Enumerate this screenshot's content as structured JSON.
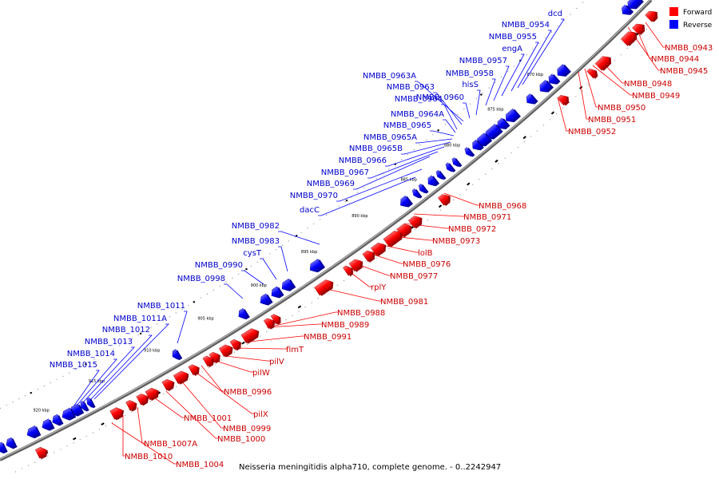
{
  "caption": "Neisseria meningitidis alpha710, complete genome. - 0..2242947",
  "legend": {
    "placement": "top-right",
    "forward": {
      "label": "Forward",
      "color": "#ff0000"
    },
    "reverse": {
      "label": "Reverse",
      "color": "#0000ff"
    }
  },
  "axis": {
    "tick_labels": [
      "870 kbp",
      "875 kbp",
      "880 kbp",
      "885 kbp",
      "890 kbp",
      "895 kbp",
      "900 kbp",
      "905 kbp",
      "910 kbp",
      "915 kbp",
      "920 kbp"
    ]
  },
  "colors": {
    "backbone": "#808080",
    "label_forward": "#cc0000",
    "label_reverse": "#0000cc"
  },
  "forward_genes": [
    "NMBB_0943",
    "NMBB_0944",
    "NMBB_0945",
    "NMBB_0948",
    "NMBB_0949",
    "NMBB_0950",
    "NMBB_0951",
    "NMBB_0952",
    "NMBB_0968",
    "NMBB_0971",
    "NMBB_0972",
    "NMBB_0973",
    "lolB",
    "NMBB_0976",
    "NMBB_0977",
    "rplY",
    "NMBB_0981",
    "NMBB_0988",
    "NMBB_0989",
    "NMBB_0991",
    "fimT",
    "pilV",
    "pilW",
    "NMBB_0996",
    "pilX",
    "NMBB_0999",
    "NMBB_1000",
    "NMBB_1001",
    "NMBB_1007A",
    "NMBB_1010",
    "NMBB_1004"
  ],
  "reverse_genes": [
    "dcd",
    "NMBB_0954",
    "NMBB_0955",
    "engA",
    "NMBB_0957",
    "NMBB_0958",
    "hisS",
    "NMBB_0960",
    "NMBB_0963A",
    "NMBB_0963",
    "NMBB_0964",
    "NMBB_0964A",
    "NMBB_0965",
    "NMBB_0965A",
    "NMBB_0965B",
    "NMBB_0966",
    "NMBB_0967",
    "NMBB_0969",
    "NMBB_0970",
    "dacC",
    "NMBB_0982",
    "NMBB_0983",
    "cysT",
    "NMBB_0990",
    "NMBB_0998",
    "NMBB_1011",
    "NMBB_1011A",
    "NMBB_1012",
    "NMBB_1013",
    "NMBB_1014",
    "NMBB_1015"
  ]
}
